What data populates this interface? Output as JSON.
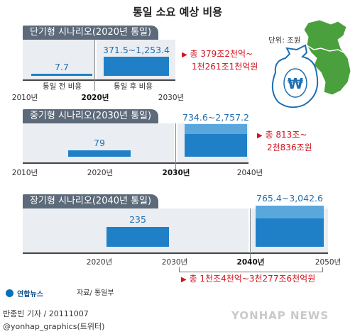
{
  "title": "통일 소요 예상 비용",
  "unit_label": "단위: 조원",
  "chart_data": {
    "type": "bar",
    "unit": "조원",
    "scenarios": [
      {
        "name": "단기형 시나리오(2020년 통일)",
        "unification_year": 2020,
        "axis": [
          "2010년",
          "2020년",
          "2030년"
        ],
        "axis_bold": "2020년",
        "bars": [
          {
            "label": "통일 전 비용",
            "period": "2010년~2020년",
            "value_text": "7.7",
            "value": 7.7
          },
          {
            "label": "통일 후 비용",
            "period": "2020년~2030년",
            "value_text": "371.5~1,253.4",
            "min": 371.5,
            "max": 1253.4
          }
        ],
        "total_lines": [
          "총 379조2천억~",
          "1천261조1천억원"
        ]
      },
      {
        "name": "중기형 시나리오(2030년 통일)",
        "unification_year": 2030,
        "axis": [
          "2010년",
          "2020년",
          "2030년",
          "2040년"
        ],
        "axis_bold": "2030년",
        "bars": [
          {
            "period": "2020년~2030년",
            "value_text": "79",
            "value": 79
          },
          {
            "period": "2030년~2040년",
            "value_text": "734.6~2,757.2",
            "min": 734.6,
            "max": 2757.2
          }
        ],
        "total_lines": [
          "총 813조~",
          "2천836조원"
        ]
      },
      {
        "name": "장기형 시나리오(2040년 통일)",
        "unification_year": 2040,
        "axis": [
          "2010년",
          "2020년",
          "2030년",
          "2040년",
          "2050년"
        ],
        "axis_bold": "2040년",
        "bars": [
          {
            "period": "2020년~2030년",
            "value_text": "235",
            "value": 235
          },
          {
            "period": "2040년~2050년",
            "value_text": "765.4~3,042.6",
            "min": 765.4,
            "max": 3042.6
          }
        ],
        "total_lines": [
          "총 1천조4천억~3천277조6천억원"
        ]
      }
    ]
  },
  "source": "자료/ 통일부",
  "logo": "연합뉴스",
  "credit_line1": "반종빈 기자 / 20111007",
  "credit_line2": "@yonhap_graphics(트위터)",
  "watermark": "YONHAP NEWS"
}
